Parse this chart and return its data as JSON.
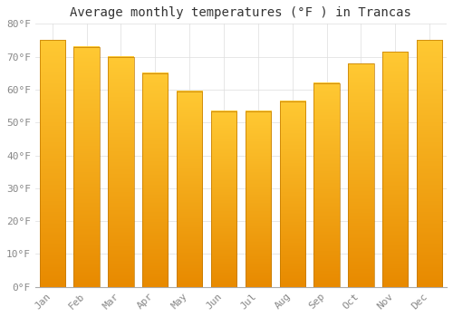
{
  "title": "Average monthly temperatures (°F ) in Trancas",
  "months": [
    "Jan",
    "Feb",
    "Mar",
    "Apr",
    "May",
    "Jun",
    "Jul",
    "Aug",
    "Sep",
    "Oct",
    "Nov",
    "Dec"
  ],
  "values": [
    75,
    73,
    70,
    65,
    59.5,
    53.5,
    53.5,
    56.5,
    62,
    68,
    71.5,
    75
  ],
  "bar_color_top": "#FFC933",
  "bar_color_bottom": "#E88A00",
  "bar_edge_color": "#C07800",
  "background_color": "#FFFFFF",
  "ylim": [
    0,
    80
  ],
  "yticks": [
    0,
    10,
    20,
    30,
    40,
    50,
    60,
    70,
    80
  ],
  "ytick_labels": [
    "0°F",
    "10°F",
    "20°F",
    "30°F",
    "40°F",
    "50°F",
    "60°F",
    "70°F",
    "80°F"
  ],
  "title_fontsize": 10,
  "tick_fontsize": 8,
  "grid_color": "#DDDDDD"
}
